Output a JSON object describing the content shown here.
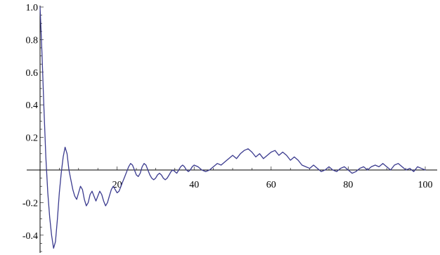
{
  "chart_data": {
    "type": "line",
    "title": "",
    "xlabel": "",
    "ylabel": "",
    "xlim": [
      0,
      100
    ],
    "ylim": [
      -0.55,
      1.02
    ],
    "grid": false,
    "legend": "none",
    "x_ticks": [
      {
        "value": 20,
        "label": "20"
      },
      {
        "value": 40,
        "label": "40"
      },
      {
        "value": 60,
        "label": "60"
      },
      {
        "value": 80,
        "label": "80"
      },
      {
        "value": 100,
        "label": "100"
      }
    ],
    "y_ticks": [
      {
        "value": 1.0,
        "label": "1.0"
      },
      {
        "value": 0.8,
        "label": "0.8"
      },
      {
        "value": 0.6,
        "label": "0.6"
      },
      {
        "value": 0.4,
        "label": "0.4"
      },
      {
        "value": 0.2,
        "label": "0.2"
      },
      {
        "value": -0.2,
        "label": "-0.2"
      },
      {
        "value": -0.4,
        "label": "-0.4"
      }
    ],
    "series": [
      {
        "color": "#3b3b8f",
        "x": [
          0,
          0.5,
          1,
          1.5,
          2,
          2.5,
          3,
          3.5,
          4,
          4.5,
          5,
          5.5,
          6,
          6.5,
          7,
          7.5,
          8,
          8.5,
          9,
          9.5,
          10,
          10.5,
          11,
          11.5,
          12,
          12.5,
          13,
          13.5,
          14,
          14.5,
          15,
          15.5,
          16,
          16.5,
          17,
          17.5,
          18,
          18.5,
          19,
          19.5,
          20,
          20.5,
          21,
          21.5,
          22,
          22.5,
          23,
          23.5,
          24,
          24.5,
          25,
          25.5,
          26,
          26.5,
          27,
          27.5,
          28,
          28.5,
          29,
          29.5,
          30,
          30.5,
          31,
          31.5,
          32,
          32.5,
          33,
          33.5,
          34,
          34.5,
          35,
          35.5,
          36,
          36.5,
          37,
          37.5,
          38,
          38.5,
          39,
          39.5,
          40,
          41,
          42,
          43,
          44,
          45,
          46,
          47,
          48,
          49,
          50,
          51,
          52,
          53,
          54,
          55,
          56,
          57,
          58,
          59,
          60,
          61,
          62,
          63,
          64,
          65,
          66,
          67,
          68,
          69,
          70,
          71,
          72,
          73,
          74,
          75,
          76,
          77,
          78,
          79,
          80,
          81,
          82,
          83,
          84,
          85,
          86,
          87,
          88,
          89,
          90,
          91,
          92,
          93,
          94,
          95,
          96,
          97,
          98,
          99,
          100
        ],
        "y": [
          1.0,
          0.72,
          0.38,
          0.08,
          -0.14,
          -0.29,
          -0.4,
          -0.48,
          -0.44,
          -0.3,
          -0.14,
          -0.02,
          0.08,
          0.14,
          0.1,
          0.0,
          -0.06,
          -0.12,
          -0.16,
          -0.18,
          -0.14,
          -0.1,
          -0.12,
          -0.18,
          -0.22,
          -0.2,
          -0.15,
          -0.13,
          -0.16,
          -0.19,
          -0.16,
          -0.13,
          -0.15,
          -0.19,
          -0.22,
          -0.2,
          -0.16,
          -0.12,
          -0.1,
          -0.12,
          -0.14,
          -0.13,
          -0.1,
          -0.07,
          -0.04,
          -0.01,
          0.02,
          0.04,
          0.03,
          0.0,
          -0.03,
          -0.04,
          -0.02,
          0.02,
          0.04,
          0.03,
          0.0,
          -0.03,
          -0.05,
          -0.06,
          -0.05,
          -0.03,
          -0.02,
          -0.03,
          -0.05,
          -0.06,
          -0.05,
          -0.03,
          -0.01,
          0.0,
          -0.01,
          -0.02,
          0.0,
          0.02,
          0.03,
          0.02,
          0.0,
          -0.01,
          0.0,
          0.02,
          0.03,
          0.02,
          0.0,
          -0.01,
          0.0,
          0.02,
          0.04,
          0.03,
          0.05,
          0.07,
          0.09,
          0.07,
          0.1,
          0.12,
          0.13,
          0.11,
          0.08,
          0.1,
          0.07,
          0.09,
          0.11,
          0.12,
          0.09,
          0.11,
          0.09,
          0.06,
          0.08,
          0.06,
          0.03,
          0.02,
          0.01,
          0.03,
          0.01,
          -0.01,
          0.0,
          0.02,
          0.0,
          -0.01,
          0.01,
          0.02,
          0.0,
          -0.02,
          -0.01,
          0.01,
          0.02,
          0.0,
          0.02,
          0.03,
          0.02,
          0.04,
          0.02,
          0.0,
          0.03,
          0.04,
          0.02,
          0.0,
          0.01,
          -0.01,
          0.02,
          0.01,
          0.0
        ]
      }
    ]
  }
}
